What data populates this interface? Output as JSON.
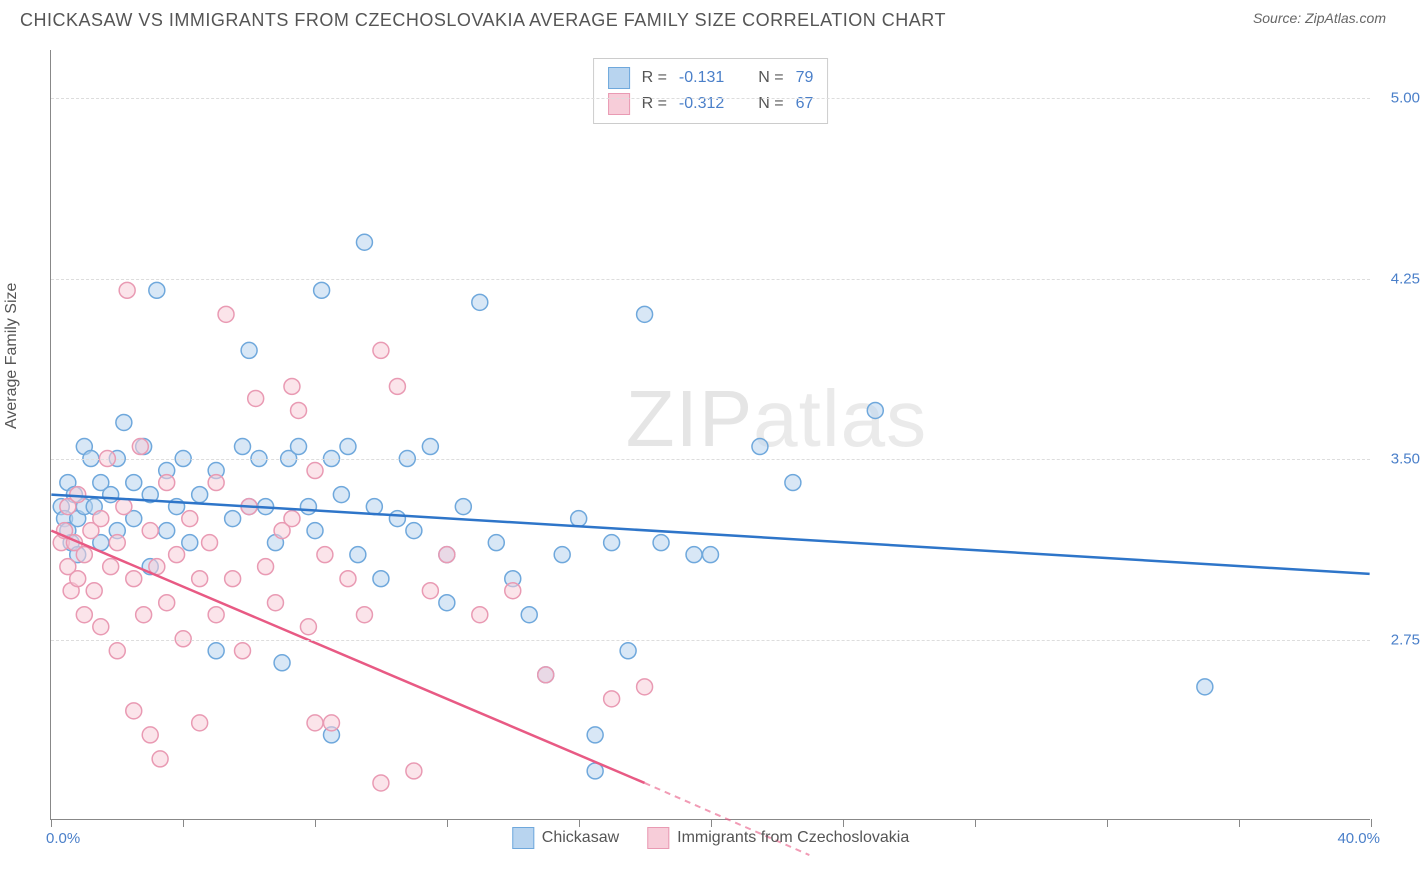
{
  "title": "CHICKASAW VS IMMIGRANTS FROM CZECHOSLOVAKIA AVERAGE FAMILY SIZE CORRELATION CHART",
  "source_label": "Source: ",
  "source": "ZipAtlas.com",
  "y_axis_label": "Average Family Size",
  "watermark": "ZIPatlas",
  "chart": {
    "type": "scatter",
    "xlim": [
      0,
      40
    ],
    "ylim": [
      2.0,
      5.2
    ],
    "x_min_label": "0.0%",
    "x_max_label": "40.0%",
    "y_ticks": [
      2.75,
      3.5,
      4.25,
      5.0
    ],
    "y_tick_labels": [
      "2.75",
      "3.50",
      "4.25",
      "5.00"
    ],
    "x_tick_positions": [
      0,
      4,
      8,
      12,
      16,
      20,
      24,
      28,
      32,
      36,
      40
    ],
    "background_color": "#ffffff",
    "grid_color": "#dddddd",
    "marker_radius": 8,
    "marker_opacity": 0.55,
    "series": [
      {
        "name": "Chickasaw",
        "color_fill": "#b8d4ef",
        "color_stroke": "#6fa8dc",
        "line_color": "#2e75c9",
        "r_value": "-0.131",
        "n_value": "79",
        "regression": {
          "x1": 0,
          "y1": 3.35,
          "x2": 40,
          "y2": 3.02
        },
        "points": [
          [
            0.3,
            3.3
          ],
          [
            0.4,
            3.25
          ],
          [
            0.5,
            3.2
          ],
          [
            0.5,
            3.4
          ],
          [
            0.6,
            3.15
          ],
          [
            0.7,
            3.35
          ],
          [
            0.8,
            3.25
          ],
          [
            0.8,
            3.1
          ],
          [
            1.0,
            3.3
          ],
          [
            1.0,
            3.55
          ],
          [
            1.2,
            3.5
          ],
          [
            1.3,
            3.3
          ],
          [
            1.5,
            3.4
          ],
          [
            1.5,
            3.15
          ],
          [
            1.8,
            3.35
          ],
          [
            2.0,
            3.5
          ],
          [
            2.0,
            3.2
          ],
          [
            2.2,
            3.65
          ],
          [
            2.5,
            3.4
          ],
          [
            2.5,
            3.25
          ],
          [
            2.8,
            3.55
          ],
          [
            3.0,
            3.35
          ],
          [
            3.0,
            3.05
          ],
          [
            3.2,
            4.2
          ],
          [
            3.5,
            3.45
          ],
          [
            3.5,
            3.2
          ],
          [
            3.8,
            3.3
          ],
          [
            4.0,
            3.5
          ],
          [
            4.2,
            3.15
          ],
          [
            4.5,
            3.35
          ],
          [
            5.0,
            3.45
          ],
          [
            5.0,
            2.7
          ],
          [
            5.5,
            3.25
          ],
          [
            5.8,
            3.55
          ],
          [
            6.0,
            3.3
          ],
          [
            6.0,
            3.95
          ],
          [
            6.3,
            3.5
          ],
          [
            6.5,
            3.3
          ],
          [
            6.8,
            3.15
          ],
          [
            7.0,
            2.65
          ],
          [
            7.2,
            3.5
          ],
          [
            7.5,
            3.55
          ],
          [
            7.8,
            3.3
          ],
          [
            8.0,
            3.2
          ],
          [
            8.2,
            4.2
          ],
          [
            8.5,
            3.5
          ],
          [
            8.5,
            2.35
          ],
          [
            8.8,
            3.35
          ],
          [
            9.0,
            3.55
          ],
          [
            9.3,
            3.1
          ],
          [
            9.5,
            4.4
          ],
          [
            9.8,
            3.3
          ],
          [
            10.0,
            3.0
          ],
          [
            10.5,
            3.25
          ],
          [
            10.8,
            3.5
          ],
          [
            11.0,
            3.2
          ],
          [
            11.5,
            3.55
          ],
          [
            12.0,
            3.1
          ],
          [
            12.0,
            2.9
          ],
          [
            12.5,
            3.3
          ],
          [
            13.0,
            4.15
          ],
          [
            13.5,
            3.15
          ],
          [
            14.0,
            3.0
          ],
          [
            14.5,
            2.85
          ],
          [
            15.0,
            2.6
          ],
          [
            15.5,
            3.1
          ],
          [
            16.0,
            3.25
          ],
          [
            16.5,
            2.35
          ],
          [
            17.0,
            3.15
          ],
          [
            17.5,
            2.7
          ],
          [
            18.0,
            4.1
          ],
          [
            18.5,
            3.15
          ],
          [
            19.5,
            3.1
          ],
          [
            20.0,
            3.1
          ],
          [
            21.5,
            3.55
          ],
          [
            22.5,
            3.4
          ],
          [
            25.0,
            3.7
          ],
          [
            35.0,
            2.55
          ],
          [
            16.5,
            2.2
          ]
        ]
      },
      {
        "name": "Immigrants from Czechoslovakia",
        "color_fill": "#f7cdd9",
        "color_stroke": "#e99ab3",
        "line_color": "#e85a84",
        "r_value": "-0.312",
        "n_value": "67",
        "regression": {
          "x1": 0,
          "y1": 3.2,
          "x2": 18,
          "y2": 2.15
        },
        "regression_dash": {
          "x1": 18,
          "y1": 2.15,
          "x2": 23,
          "y2": 1.85
        },
        "points": [
          [
            0.3,
            3.15
          ],
          [
            0.4,
            3.2
          ],
          [
            0.5,
            3.05
          ],
          [
            0.5,
            3.3
          ],
          [
            0.6,
            2.95
          ],
          [
            0.7,
            3.15
          ],
          [
            0.8,
            3.0
          ],
          [
            0.8,
            3.35
          ],
          [
            1.0,
            3.1
          ],
          [
            1.0,
            2.85
          ],
          [
            1.2,
            3.2
          ],
          [
            1.3,
            2.95
          ],
          [
            1.5,
            3.25
          ],
          [
            1.5,
            2.8
          ],
          [
            1.7,
            3.5
          ],
          [
            1.8,
            3.05
          ],
          [
            2.0,
            3.15
          ],
          [
            2.0,
            2.7
          ],
          [
            2.2,
            3.3
          ],
          [
            2.3,
            4.2
          ],
          [
            2.5,
            3.0
          ],
          [
            2.5,
            2.45
          ],
          [
            2.7,
            3.55
          ],
          [
            2.8,
            2.85
          ],
          [
            3.0,
            3.2
          ],
          [
            3.0,
            2.35
          ],
          [
            3.2,
            3.05
          ],
          [
            3.3,
            2.25
          ],
          [
            3.5,
            3.4
          ],
          [
            3.5,
            2.9
          ],
          [
            3.8,
            3.1
          ],
          [
            4.0,
            2.75
          ],
          [
            4.2,
            3.25
          ],
          [
            4.5,
            3.0
          ],
          [
            4.5,
            2.4
          ],
          [
            4.8,
            3.15
          ],
          [
            5.0,
            2.85
          ],
          [
            5.0,
            3.4
          ],
          [
            5.3,
            4.1
          ],
          [
            5.5,
            3.0
          ],
          [
            5.8,
            2.7
          ],
          [
            6.0,
            3.3
          ],
          [
            6.2,
            3.75
          ],
          [
            6.5,
            3.05
          ],
          [
            6.8,
            2.9
          ],
          [
            7.0,
            3.2
          ],
          [
            7.3,
            3.8
          ],
          [
            7.5,
            3.7
          ],
          [
            7.8,
            2.8
          ],
          [
            8.0,
            3.45
          ],
          [
            8.0,
            2.4
          ],
          [
            8.3,
            3.1
          ],
          [
            8.5,
            2.4
          ],
          [
            9.0,
            3.0
          ],
          [
            9.5,
            2.85
          ],
          [
            10.0,
            3.95
          ],
          [
            10.0,
            2.15
          ],
          [
            10.5,
            3.8
          ],
          [
            11.0,
            2.2
          ],
          [
            11.5,
            2.95
          ],
          [
            12.0,
            3.1
          ],
          [
            13.0,
            2.85
          ],
          [
            14.0,
            2.95
          ],
          [
            15.0,
            2.6
          ],
          [
            17.0,
            2.5
          ],
          [
            18.0,
            2.55
          ],
          [
            7.3,
            3.25
          ]
        ]
      }
    ]
  },
  "legend": {
    "series1_label": "Chickasaw",
    "series2_label": "Immigrants from Czechoslovakia"
  },
  "stats": {
    "r_label": "R =",
    "n_label": "N ="
  }
}
